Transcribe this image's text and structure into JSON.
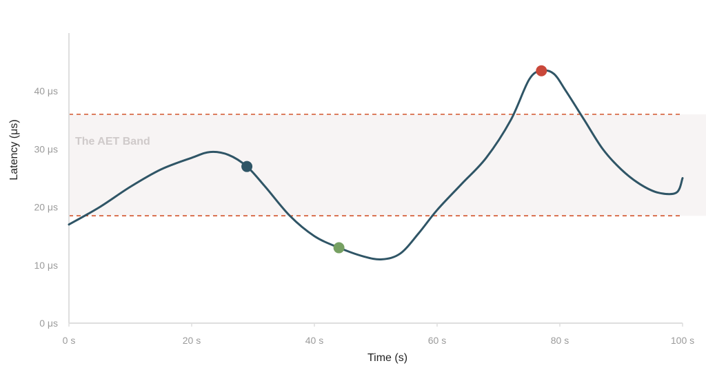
{
  "chart_data": {
    "type": "line",
    "title": "",
    "xlabel": "Time (s)",
    "ylabel": "Latency (μs)",
    "xlim": [
      0,
      100
    ],
    "ylim": [
      0,
      50
    ],
    "x_ticks": [
      0,
      20,
      40,
      60,
      80,
      100
    ],
    "x_tick_labels": [
      "0 s",
      "20 s",
      "40 s",
      "60 s",
      "80 s",
      "100 s"
    ],
    "y_ticks": [
      0,
      10,
      20,
      30,
      40
    ],
    "y_tick_labels": [
      "0 μs",
      "10 μs",
      "20 μs",
      "30 μs",
      "40 μs"
    ],
    "grid": false,
    "series": [
      {
        "x": [
          0,
          5,
          10,
          15,
          20,
          23,
          26,
          29,
          32,
          36,
          40,
          44,
          48,
          51,
          54,
          57,
          60,
          64,
          68,
          72,
          75,
          77,
          79,
          81,
          84,
          87,
          90,
          93,
          96,
          99,
          100
        ],
        "y": [
          17,
          20,
          23.5,
          26.5,
          28.5,
          29.5,
          29,
          27,
          23.5,
          18.5,
          15,
          13,
          11.5,
          11,
          12,
          15.5,
          19.5,
          24,
          28.5,
          35,
          42,
          43.5,
          43,
          40,
          35,
          30,
          26.5,
          24,
          22.5,
          22.5,
          25
        ],
        "color": "#2f5566"
      }
    ],
    "highlight_points": [
      {
        "x": 29,
        "y": 27,
        "color": "#2f5566"
      },
      {
        "x": 44,
        "y": 13,
        "color": "#76a062"
      },
      {
        "x": 77,
        "y": 43.5,
        "color": "#c9483a"
      }
    ],
    "band": {
      "label": "The AET Band",
      "from": 18.5,
      "to": 36,
      "fill": "#f7f4f4",
      "line_color": "#d2542a"
    }
  }
}
